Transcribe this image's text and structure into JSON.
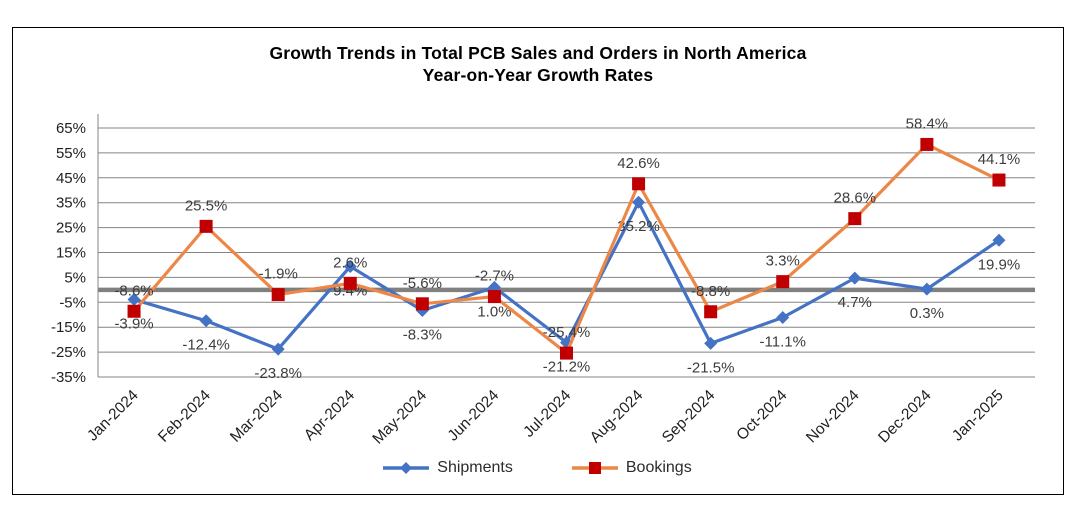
{
  "chart_data": {
    "type": "line",
    "title_line1": "Growth Trends in Total PCB Sales and Orders in North America",
    "title_line2": "Year-on-Year Growth Rates",
    "categories": [
      "Jan-2024",
      "Feb-2024",
      "Mar-2024",
      "Apr-2024",
      "May-2024",
      "Jun-2024",
      "Jul-2024",
      "Aug-2024",
      "Sep-2024",
      "Oct-2024",
      "Nov-2024",
      "Dec-2024",
      "Jan-2025"
    ],
    "series": [
      {
        "name": "Shipments",
        "marker": "diamond",
        "line_color": "#4472C4",
        "marker_color": "#4472C4",
        "label_position": "below",
        "values": [
          -3.9,
          -12.4,
          -23.8,
          9.4,
          -8.3,
          1.0,
          -21.2,
          35.2,
          -21.5,
          -11.1,
          4.7,
          0.3,
          19.9
        ]
      },
      {
        "name": "Bookings",
        "marker": "square",
        "line_color": "#ED8747",
        "marker_color": "#C00000",
        "label_position": "above",
        "values": [
          -8.6,
          25.5,
          -1.9,
          2.6,
          -5.6,
          -2.7,
          -25.4,
          42.6,
          -8.8,
          3.3,
          28.6,
          58.4,
          44.1
        ]
      }
    ],
    "ylim": [
      -35,
      65
    ],
    "ytick_step": 10,
    "ytick_suffix": "%",
    "value_label_suffix": "%",
    "value_label_decimals": 1,
    "grid": true,
    "zero_line": true,
    "legend_position": "bottom",
    "colors": {
      "gridline": "#848484",
      "zero_line": "#808080",
      "axis_text": "#1f1f1f",
      "label_text": "#3d3d3d"
    }
  }
}
